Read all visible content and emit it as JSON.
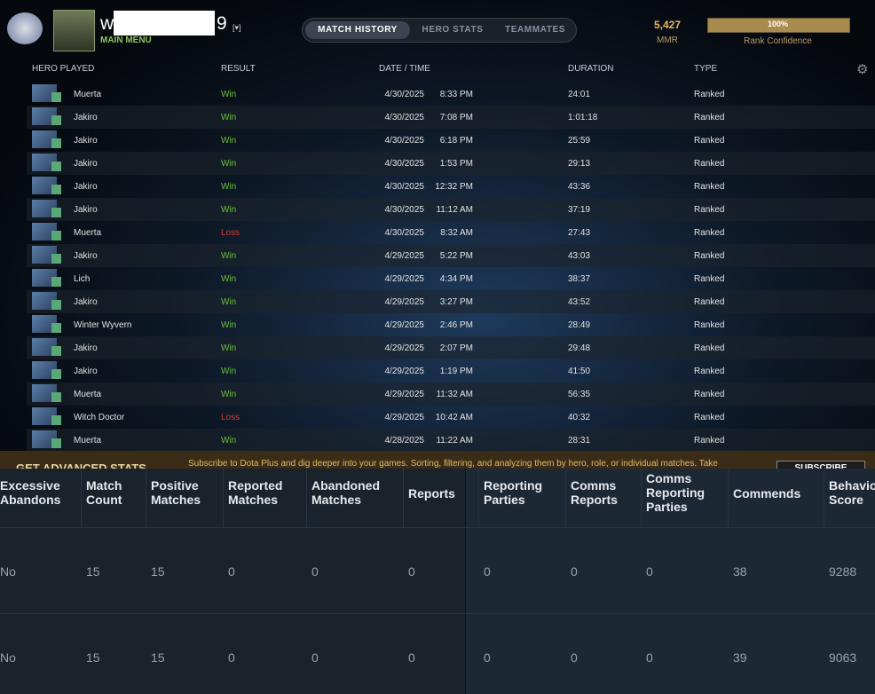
{
  "header": {
    "user_prefix": "w",
    "user_suffix": "9",
    "menu": "MAIN MENU",
    "tabs": [
      "MATCH HISTORY",
      "HERO STATS",
      "TEAMMATES"
    ],
    "mmr": "5,427",
    "mmr_label": "MMR",
    "confidence": "100%",
    "confidence_label": "Rank Confidence"
  },
  "matches": {
    "columns": [
      "HERO PLAYED",
      "RESULT",
      "DATE / TIME",
      "DURATION",
      "TYPE"
    ],
    "rows": [
      {
        "hero": "Muerta",
        "result": "Win",
        "result_color": "#6cbf3c",
        "date": "4/30/2025",
        "time": "8:33 PM",
        "duration": "24:01",
        "type": "Ranked"
      },
      {
        "hero": "Jakiro",
        "result": "Win",
        "result_color": "#6cbf3c",
        "date": "4/30/2025",
        "time": "7:08 PM",
        "duration": "1:01:18",
        "type": "Ranked"
      },
      {
        "hero": "Jakiro",
        "result": "Win",
        "result_color": "#6cbf3c",
        "date": "4/30/2025",
        "time": "6:18 PM",
        "duration": "25:59",
        "type": "Ranked"
      },
      {
        "hero": "Jakiro",
        "result": "Win",
        "result_color": "#6cbf3c",
        "date": "4/30/2025",
        "time": "1:53 PM",
        "duration": "29:13",
        "type": "Ranked"
      },
      {
        "hero": "Jakiro",
        "result": "Win",
        "result_color": "#6cbf3c",
        "date": "4/30/2025",
        "time": "12:32 PM",
        "duration": "43:36",
        "type": "Ranked"
      },
      {
        "hero": "Jakiro",
        "result": "Win",
        "result_color": "#6cbf3c",
        "date": "4/30/2025",
        "time": "11:12 AM",
        "duration": "37:19",
        "type": "Ranked"
      },
      {
        "hero": "Muerta",
        "result": "Loss",
        "result_color": "#d8392b",
        "date": "4/30/2025",
        "time": "8:32 AM",
        "duration": "27:43",
        "type": "Ranked"
      },
      {
        "hero": "Jakiro",
        "result": "Win",
        "result_color": "#6cbf3c",
        "date": "4/29/2025",
        "time": "5:22 PM",
        "duration": "43:03",
        "type": "Ranked"
      },
      {
        "hero": "Lich",
        "result": "Win",
        "result_color": "#6cbf3c",
        "date": "4/29/2025",
        "time": "4:34 PM",
        "duration": "38:37",
        "type": "Ranked"
      },
      {
        "hero": "Jakiro",
        "result": "Win",
        "result_color": "#6cbf3c",
        "date": "4/29/2025",
        "time": "3:27 PM",
        "duration": "43:52",
        "type": "Ranked"
      },
      {
        "hero": "Winter Wyvern",
        "result": "Win",
        "result_color": "#6cbf3c",
        "date": "4/29/2025",
        "time": "2:46 PM",
        "duration": "28:49",
        "type": "Ranked"
      },
      {
        "hero": "Jakiro",
        "result": "Win",
        "result_color": "#6cbf3c",
        "date": "4/29/2025",
        "time": "2:07 PM",
        "duration": "29:48",
        "type": "Ranked"
      },
      {
        "hero": "Jakiro",
        "result": "Win",
        "result_color": "#6cbf3c",
        "date": "4/29/2025",
        "time": "1:19 PM",
        "duration": "41:50",
        "type": "Ranked"
      },
      {
        "hero": "Muerta",
        "result": "Win",
        "result_color": "#6cbf3c",
        "date": "4/29/2025",
        "time": "11:32 AM",
        "duration": "56:35",
        "type": "Ranked"
      },
      {
        "hero": "Witch Doctor",
        "result": "Loss",
        "result_color": "#d8392b",
        "date": "4/29/2025",
        "time": "10:42 AM",
        "duration": "40:32",
        "type": "Ranked"
      },
      {
        "hero": "Muerta",
        "result": "Win",
        "result_color": "#6cbf3c",
        "date": "4/28/2025",
        "time": "11:22 AM",
        "duration": "28:31",
        "type": "Ranked"
      }
    ]
  },
  "banner": {
    "title": "GET ADVANCED STATS",
    "text": "Subscribe to Dota Plus and dig deeper into your games. Sorting, filtering, and analyzing them by hero, role, or individual matches. Take",
    "button": "SUBSCRIBE"
  },
  "stats": {
    "headers": [
      "Excessive Abandons",
      "Match Count",
      "Positive Matches",
      "Reported Matches",
      "Abandoned Matches",
      "Reports",
      "Reporting Parties",
      "Comms Reports",
      "Comms Reporting Parties",
      "Commends",
      "Behavior Score"
    ],
    "rows": [
      [
        "No",
        "15",
        "15",
        "0",
        "0",
        "0",
        "0",
        "0",
        "0",
        "38",
        "9288"
      ],
      [
        "No",
        "15",
        "15",
        "0",
        "0",
        "0",
        "0",
        "0",
        "0",
        "39",
        "9063"
      ]
    ]
  }
}
